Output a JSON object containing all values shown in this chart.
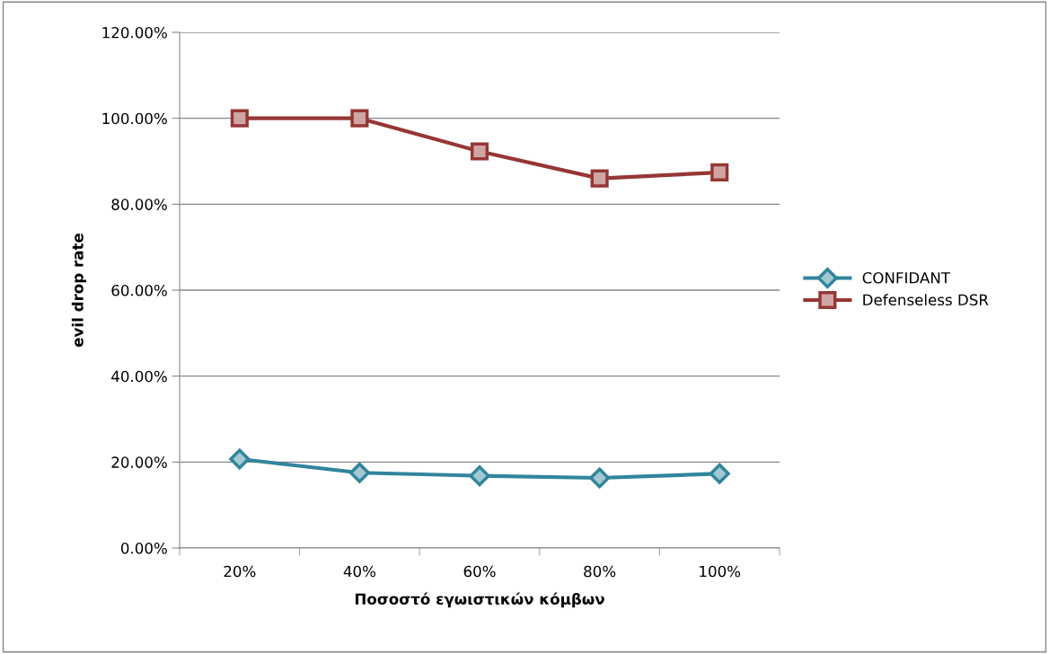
{
  "chart_data": {
    "type": "line",
    "xlabel": "Ποσοστό εγωιστικών κόμβων",
    "ylabel": "evil drop rate",
    "categories": [
      "20%",
      "40%",
      "60%",
      "80%",
      "100%"
    ],
    "series": [
      {
        "name": "CONFIDANT",
        "color": "#31859c",
        "marker": "diamond",
        "values": [
          20.7,
          17.5,
          16.8,
          16.3,
          17.3
        ]
      },
      {
        "name": "Defenseless DSR",
        "color": "#953735",
        "marker": "square",
        "values": [
          100,
          100,
          92.3,
          86,
          87.4
        ]
      }
    ],
    "ylim": [
      0,
      120
    ],
    "yticks": [
      {
        "value": 0,
        "label": "0.00%"
      },
      {
        "value": 20,
        "label": "20.00%"
      },
      {
        "value": 40,
        "label": "40.00%"
      },
      {
        "value": 60,
        "label": "60.00%"
      },
      {
        "value": 80,
        "label": "80.00%"
      },
      {
        "value": 100,
        "label": "100.00%"
      },
      {
        "value": 120,
        "label": "120.00%"
      }
    ],
    "grid": "y",
    "legend": "right",
    "line_style": "solid"
  }
}
